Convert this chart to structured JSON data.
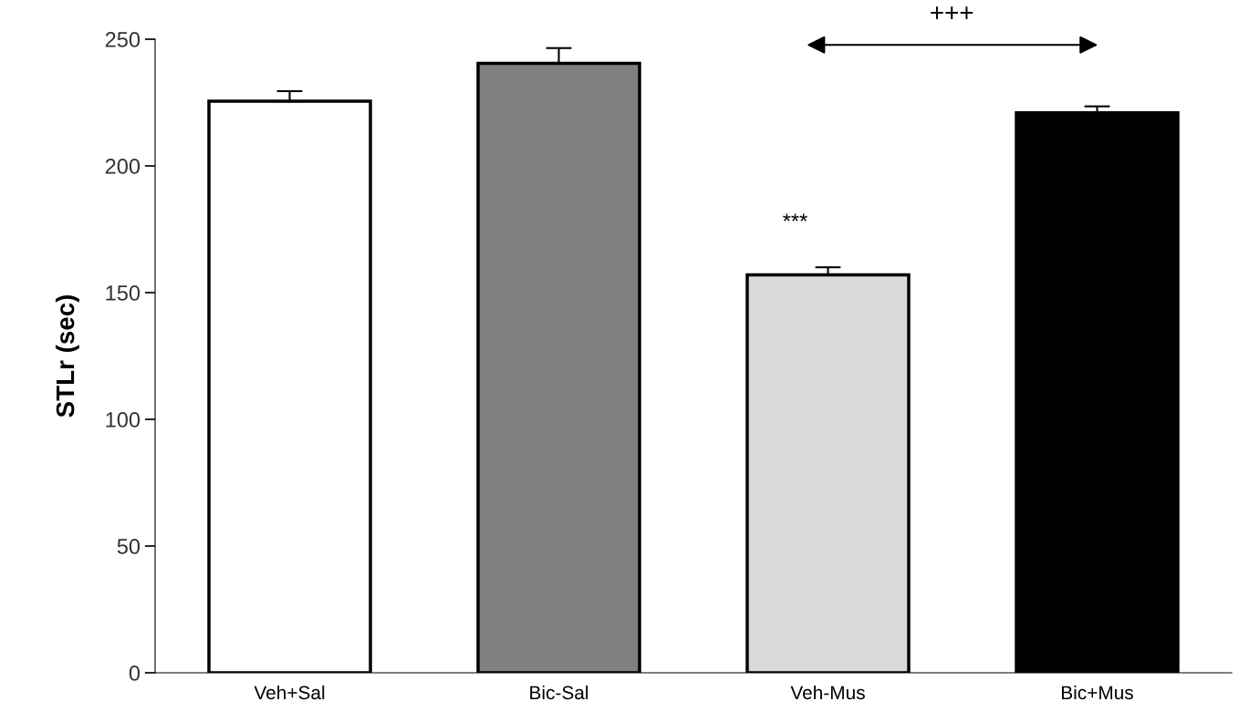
{
  "chart_data": {
    "type": "bar",
    "ylabel": "STLr (sec)",
    "categories": [
      "Veh+Sal",
      "Bic-Sal",
      "Veh-Mus",
      "Bic+Mus"
    ],
    "values": [
      225.5,
      240.5,
      157,
      221
    ],
    "errors": [
      [
        225.5,
        229.5
      ],
      [
        240.5,
        246.5
      ],
      [
        157,
        160
      ],
      [
        221,
        223.5
      ]
    ],
    "colors": [
      "#ffffff",
      "#808080",
      "#d9d9d9",
      "#000000"
    ],
    "ylim": [
      0,
      250
    ],
    "yticks": [
      0,
      50,
      100,
      150,
      200,
      250
    ],
    "grid": false,
    "legend": false,
    "annotations": [
      "***",
      "+++"
    ]
  }
}
